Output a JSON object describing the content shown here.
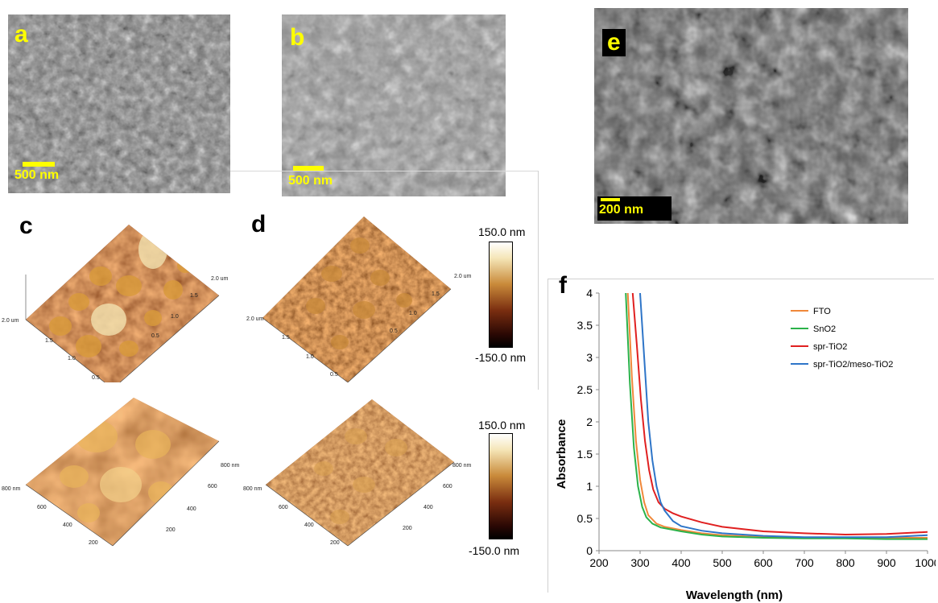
{
  "panels": {
    "a": {
      "label": "a",
      "scale_bar": "500 nm"
    },
    "b": {
      "label": "b",
      "scale_bar": "500 nm"
    },
    "c": {
      "label": "c"
    },
    "d": {
      "label": "d"
    },
    "e": {
      "label": "e",
      "scale_bar": "200 nm"
    },
    "f": {
      "label": "f"
    }
  },
  "colorbars": [
    {
      "top": "150.0 nm",
      "bottom": "-150.0 nm"
    },
    {
      "top": "150.0 nm",
      "bottom": "-150.0 nm"
    }
  ],
  "afm_axis_labels": {
    "c_top": [
      "2.0 um",
      "1.5",
      "1.0",
      "0.5"
    ],
    "c_top_right": [
      "2.0 um",
      "1.5",
      "1.0",
      "0.5"
    ],
    "c_bottom": [
      "800 nm",
      "600",
      "400",
      "200"
    ],
    "c_bottom_right": [
      "800 nm",
      "600",
      "400",
      "200"
    ],
    "d_top": [
      "2.0 um",
      "1.5",
      "1.0",
      "0.5"
    ],
    "d_top_right": [
      "2.0 um",
      "1.5",
      "1.0",
      "0.5"
    ],
    "d_bottom": [
      "800 nm",
      "600",
      "400",
      "200"
    ],
    "d_bottom_right": [
      "800 nm",
      "600",
      "400",
      "200"
    ]
  },
  "colors": {
    "sem_gray": "#8a8a8a",
    "afm_dark": "#3a0d05",
    "afm_mid": "#a0521a",
    "afm_light": "#f5e6b8",
    "scale_yellow": "#ffff00"
  },
  "chart_data": {
    "type": "line",
    "title": "",
    "xlabel": "Wavelength (nm)",
    "ylabel": "Absorbance",
    "xlim": [
      200,
      1000
    ],
    "ylim": [
      0,
      4
    ],
    "xticks": [
      200,
      300,
      400,
      500,
      600,
      700,
      800,
      900,
      1000
    ],
    "yticks": [
      0,
      0.5,
      1,
      1.5,
      2,
      2.5,
      3,
      3.5,
      4
    ],
    "xtick_labels": [
      "200",
      "300",
      "400",
      "500",
      "600",
      "700",
      "800",
      "900",
      "1000"
    ],
    "ytick_labels": [
      "0",
      "0.5",
      "1",
      "1.5",
      "2",
      "2.5",
      "3",
      "3.5",
      "4"
    ],
    "grid": false,
    "legend_position": "top-right",
    "series": [
      {
        "name": "FTO",
        "color": "#f0883a",
        "x": [
          270,
          280,
          290,
          300,
          310,
          320,
          340,
          360,
          400,
          450,
          500,
          600,
          700,
          800,
          900,
          1000
        ],
        "y": [
          4.0,
          2.7,
          1.7,
          1.1,
          0.75,
          0.55,
          0.42,
          0.37,
          0.32,
          0.27,
          0.24,
          0.21,
          0.2,
          0.2,
          0.2,
          0.2
        ]
      },
      {
        "name": "SnO2",
        "color": "#2bb24a",
        "x": [
          265,
          275,
          285,
          295,
          305,
          315,
          330,
          350,
          400,
          450,
          500,
          600,
          700,
          800,
          900,
          1000
        ],
        "y": [
          4.0,
          2.6,
          1.6,
          1.0,
          0.68,
          0.52,
          0.42,
          0.36,
          0.3,
          0.25,
          0.22,
          0.2,
          0.19,
          0.19,
          0.18,
          0.18
        ]
      },
      {
        "name": "spr-TiO2",
        "color": "#e02020",
        "x": [
          282,
          292,
          302,
          312,
          322,
          332,
          345,
          360,
          380,
          400,
          450,
          500,
          600,
          700,
          800,
          900,
          1000
        ],
        "y": [
          4.0,
          3.2,
          2.35,
          1.7,
          1.25,
          0.95,
          0.75,
          0.65,
          0.58,
          0.53,
          0.44,
          0.37,
          0.3,
          0.27,
          0.25,
          0.26,
          0.29
        ]
      },
      {
        "name": "spr-TiO2/meso-TiO2",
        "color": "#2e75c8",
        "x": [
          300,
          310,
          320,
          330,
          340,
          350,
          360,
          380,
          400,
          450,
          500,
          600,
          700,
          800,
          900,
          1000
        ],
        "y": [
          4.0,
          3.0,
          2.0,
          1.4,
          1.0,
          0.75,
          0.62,
          0.46,
          0.38,
          0.31,
          0.27,
          0.23,
          0.21,
          0.21,
          0.21,
          0.24
        ]
      }
    ]
  }
}
